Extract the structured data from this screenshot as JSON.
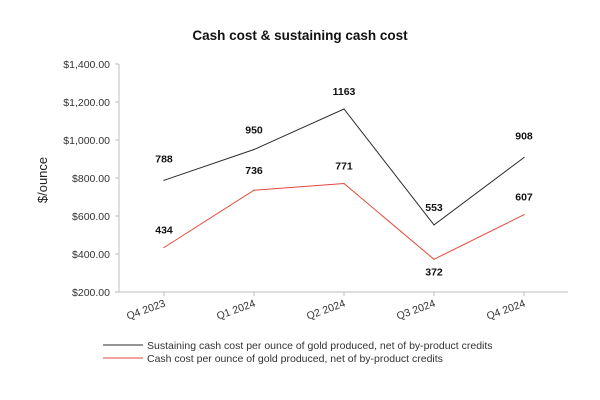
{
  "chart_data": {
    "type": "line",
    "title": "Cash cost & sustaining cash cost",
    "xlabel": "",
    "ylabel": "$/ounce",
    "categories": [
      "Q4 2023",
      "Q1 2024",
      "Q2 2024",
      "Q3 2024",
      "Q4 2024"
    ],
    "ylim": [
      200,
      1400
    ],
    "yticks": [
      200,
      400,
      600,
      800,
      1000,
      1200,
      1400
    ],
    "ytick_labels": [
      "$200.00",
      "$400.00",
      "$600.00",
      "$800.00",
      "$1,000.00",
      "$1,200.00",
      "$1,400.00"
    ],
    "grid": false,
    "legend_position": "bottom",
    "series": [
      {
        "name": "Sustaining cash cost per ounce of gold produced, net of by-product credits",
        "color": "#2b2b2b",
        "values": [
          788,
          950,
          1163,
          553,
          908
        ],
        "labels": [
          "788",
          "950",
          "1163",
          "553",
          "908"
        ]
      },
      {
        "name": "Cash cost per ounce of gold produced, net of by-product credits",
        "color": "#e0493a",
        "values": [
          434,
          736,
          771,
          372,
          607
        ],
        "labels": [
          "434",
          "736",
          "771",
          "372",
          "607"
        ]
      }
    ]
  }
}
